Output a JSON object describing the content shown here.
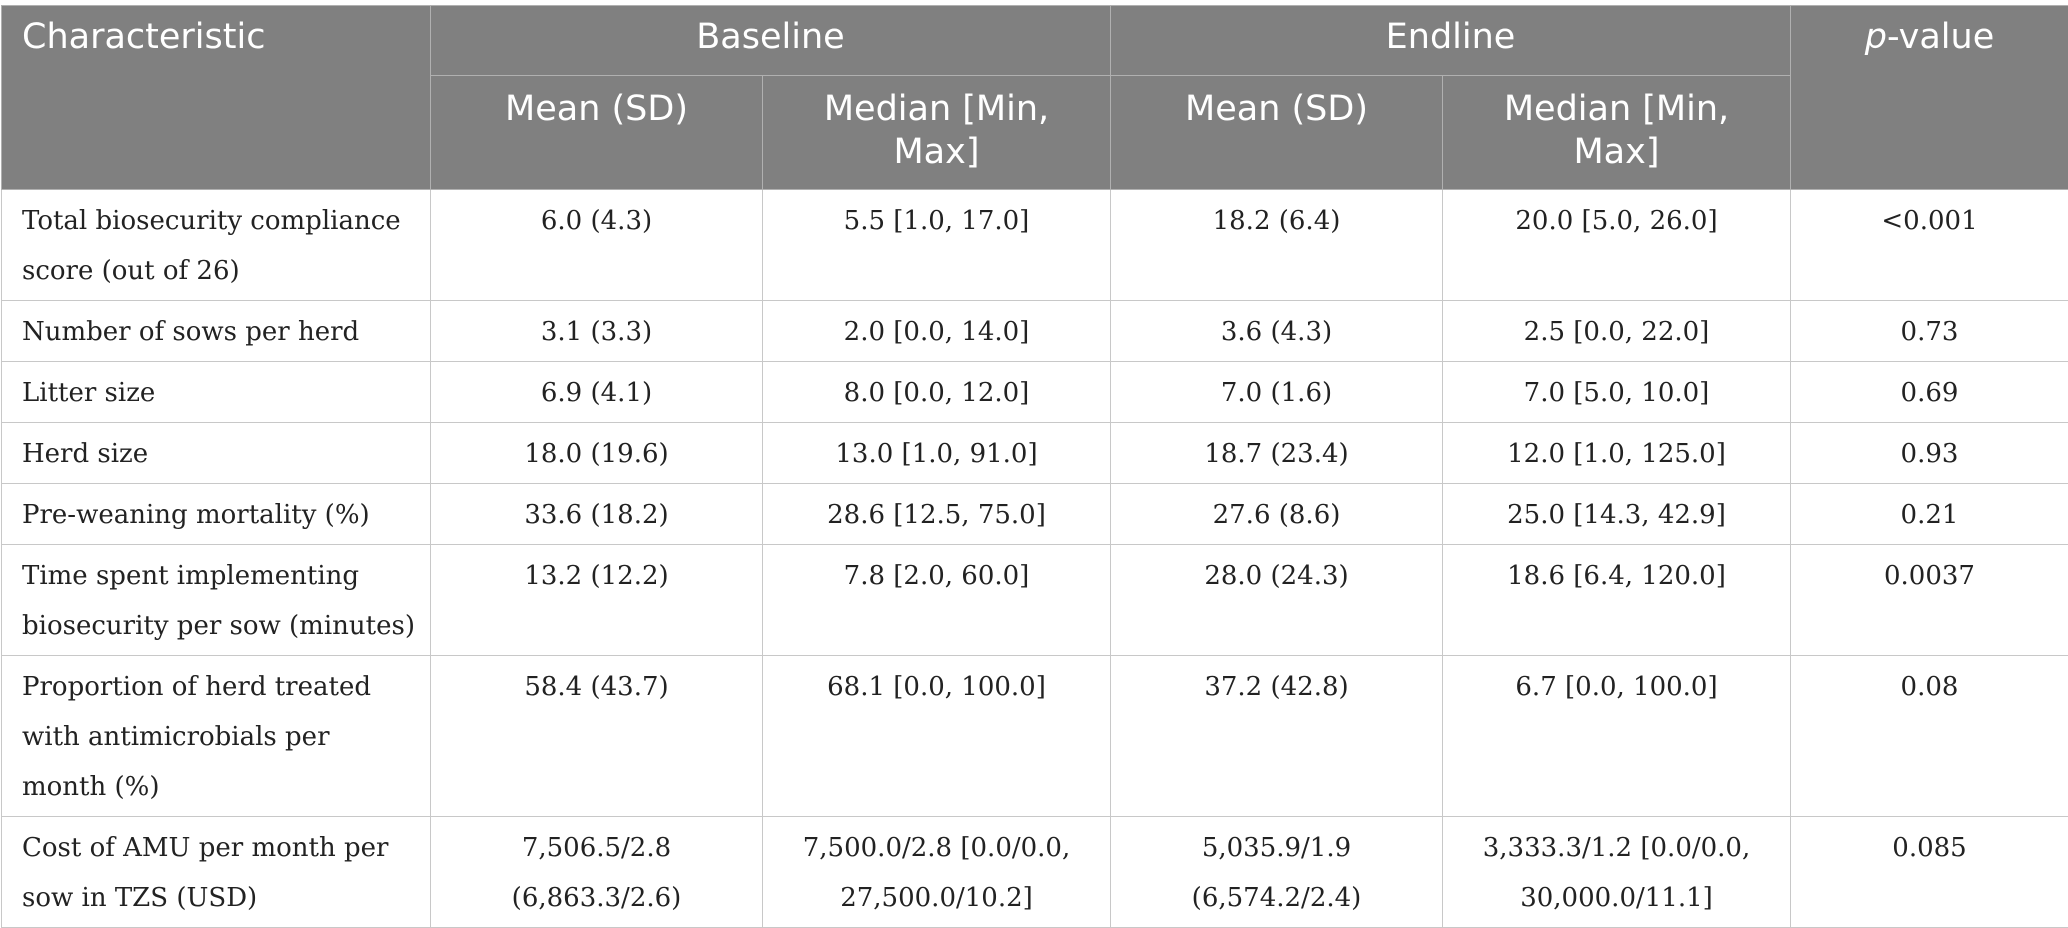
{
  "table": {
    "header": {
      "characteristic": "Characteristic",
      "baseline": "Baseline",
      "endline": "Endline",
      "pvalue_italic": "p",
      "pvalue_rest": "-value",
      "mean_sd": "Mean (SD)",
      "median_min_max": "Median [Min, Max]"
    },
    "rows": [
      {
        "characteristic": "Total biosecurity compliance score (out of 26)",
        "baseline_mean": "6.0 (4.3)",
        "baseline_median": "5.5 [1.0, 17.0]",
        "endline_mean": "18.2 (6.4)",
        "endline_median": "20.0 [5.0, 26.0]",
        "pvalue": "<0.001"
      },
      {
        "characteristic": "Number of sows per herd",
        "baseline_mean": "3.1 (3.3)",
        "baseline_median": "2.0 [0.0, 14.0]",
        "endline_mean": "3.6 (4.3)",
        "endline_median": "2.5 [0.0, 22.0]",
        "pvalue": "0.73"
      },
      {
        "characteristic": "Litter size",
        "baseline_mean": "6.9 (4.1)",
        "baseline_median": "8.0 [0.0, 12.0]",
        "endline_mean": "7.0 (1.6)",
        "endline_median": "7.0 [5.0, 10.0]",
        "pvalue": "0.69"
      },
      {
        "characteristic": "Herd size",
        "baseline_mean": "18.0 (19.6)",
        "baseline_median": "13.0 [1.0, 91.0]",
        "endline_mean": "18.7 (23.4)",
        "endline_median": "12.0 [1.0, 125.0]",
        "pvalue": "0.93"
      },
      {
        "characteristic": "Pre-weaning mortality (%)",
        "baseline_mean": "33.6 (18.2)",
        "baseline_median": "28.6 [12.5, 75.0]",
        "endline_mean": "27.6 (8.6)",
        "endline_median": "25.0 [14.3, 42.9]",
        "pvalue": "0.21"
      },
      {
        "characteristic": "Time spent implementing biosecurity per sow (minutes)",
        "baseline_mean": "13.2 (12.2)",
        "baseline_median": "7.8 [2.0, 60.0]",
        "endline_mean": "28.0 (24.3)",
        "endline_median": "18.6 [6.4, 120.0]",
        "pvalue": "0.0037"
      },
      {
        "characteristic": "Proportion of herd treated with antimicrobials per month (%)",
        "baseline_mean": "58.4 (43.7)",
        "baseline_median": "68.1 [0.0, 100.0]",
        "endline_mean": "37.2 (42.8)",
        "endline_median": "6.7 [0.0, 100.0]",
        "pvalue": "0.08"
      },
      {
        "characteristic": "Cost of AMU per month per sow in TZS (USD)",
        "baseline_mean": "7,506.5/2.8 (6,863.3/2.6)",
        "baseline_median": "7,500.0/2.8 [0.0/0.0, 27,500.0/10.2]",
        "endline_mean": "5,035.9/1.9 (6,574.2/2.4)",
        "endline_median": "3,333.3/1.2 [0.0/0.0, 30,000.0/11.1]",
        "pvalue": "0.085"
      }
    ]
  }
}
